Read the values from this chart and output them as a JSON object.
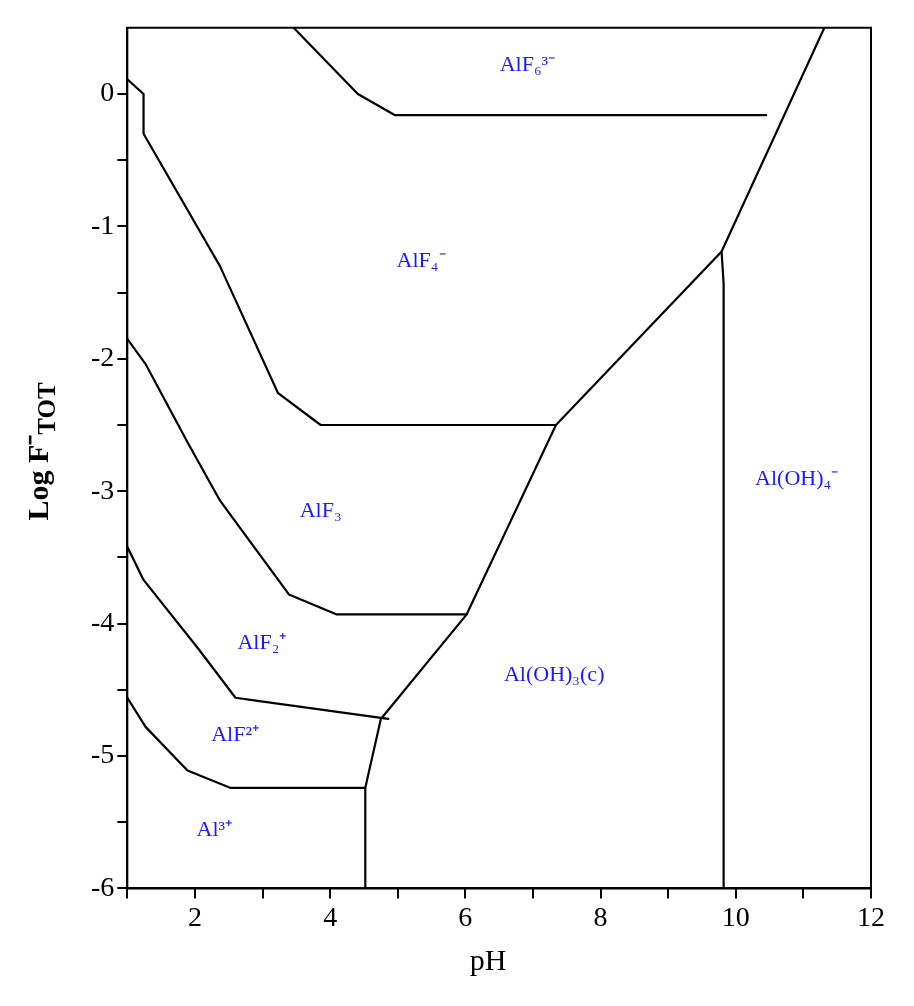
{
  "chart_data": {
    "type": "line",
    "xlabel": "pH",
    "ylabel": "Log F⁻$_{TOT}$",
    "xlim": [
      1,
      12
    ],
    "ylim": [
      -6,
      0.5
    ],
    "xticks": [
      {
        "value": 1,
        "label": null
      },
      2,
      {
        "value": 3,
        "label": null
      },
      4,
      {
        "value": 5,
        "label": null
      },
      6,
      {
        "value": 7,
        "label": null
      },
      8,
      {
        "value": 9,
        "label": null
      },
      10,
      {
        "value": 11,
        "label": null
      },
      12
    ],
    "yticks": [
      -6,
      {
        "value": -5.5,
        "label": null
      },
      -5,
      {
        "value": -4.5,
        "label": null
      },
      -4,
      {
        "value": -3.5,
        "label": null
      },
      -3,
      {
        "value": -2.5,
        "label": null
      },
      -2,
      {
        "value": -1.5,
        "label": null
      },
      -1,
      {
        "value": -0.5,
        "label": null
      },
      0
    ],
    "grid": false,
    "legend": false,
    "marker": "none",
    "line_style": "solid",
    "series": [
      {
        "color": "#000000",
        "x": [
          3.46,
          4.41,
          4.96,
          10.45
        ],
        "values": [
          0.5,
          0,
          -0.16,
          -0.16
        ]
      },
      {
        "color": "#000000",
        "x": [
          11.31,
          9.79,
          7.34,
          6.02,
          4.75,
          4.52,
          4.52
        ],
        "values": [
          0.5,
          -1.19,
          -2.5,
          -3.93,
          -4.72,
          -5.24,
          -6
        ]
      },
      {
        "color": "#000000",
        "x": [
          9.79,
          9.82,
          9.82
        ],
        "values": [
          -1.19,
          -1.43,
          -6
        ]
      },
      {
        "color": "#000000",
        "x": [
          1,
          1.24,
          1.24,
          2.37,
          3.23,
          3.86,
          7.34
        ],
        "values": [
          0.11,
          0,
          -0.3,
          -1.3,
          -2.26,
          -2.5,
          -2.5
        ]
      },
      {
        "color": "#000000",
        "x": [
          1,
          1.27,
          1.89,
          2.37,
          3.39,
          4.09,
          6.02
        ],
        "values": [
          -1.85,
          -2.04,
          -2.63,
          -3.07,
          -3.78,
          -3.93,
          -3.93
        ]
      },
      {
        "color": "#000000",
        "x": [
          1,
          1.24,
          2.05,
          2.6,
          4.86
        ],
        "values": [
          -3.42,
          -3.67,
          -4.19,
          -4.56,
          -4.72
        ]
      },
      {
        "color": "#000000",
        "x": [
          1,
          1.27,
          1.89,
          2.52,
          4.52
        ],
        "values": [
          -4.56,
          -4.78,
          -5.11,
          -5.24,
          -5.24
        ]
      }
    ],
    "annotations": [
      "AlF₆³⁻",
      "AlF₄⁻",
      "AlF₃",
      "AlF₂⁺",
      "AlF²⁺",
      "Al³⁺",
      "Al(OH)₃(c)",
      "Al(OH)₄⁻"
    ]
  }
}
